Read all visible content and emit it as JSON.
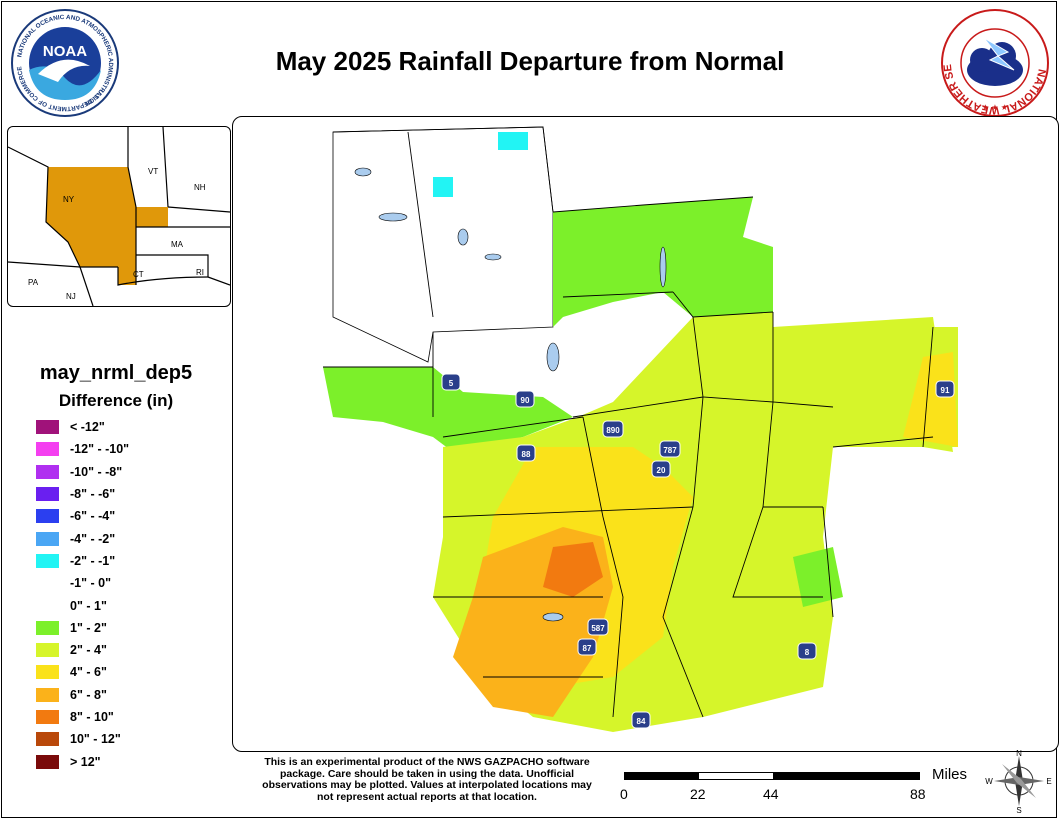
{
  "title": "May 2025 Rainfall Departure from Normal",
  "logos": {
    "noaa": {
      "text": "NOAA",
      "ring_top": "NATIONAL OCEANIC AND ATMOSPHERIC ADMINISTRATION",
      "ring_bottom": "U.S. DEPARTMENT OF COMMERCE"
    },
    "nws": {
      "ring": "NATIONAL WEATHER SERVICE"
    }
  },
  "inset_map": {
    "states": [
      "NY",
      "VT",
      "NH",
      "MA",
      "CT",
      "RI",
      "PA",
      "NJ"
    ],
    "highlight_color": "#e0980a"
  },
  "legend": {
    "title": "may_nrml_dep5",
    "subtitle": "Difference (in)",
    "items": [
      {
        "label": "< -12\"",
        "color": "#a0127a"
      },
      {
        "label": "-12\" - -10\"",
        "color": "#f43ff0"
      },
      {
        "label": "-10\" - -8\"",
        "color": "#b02ff0"
      },
      {
        "label": "-8\" - -6\"",
        "color": "#6a1ff0"
      },
      {
        "label": "-6\" - -4\"",
        "color": "#2b3ff0"
      },
      {
        "label": "-4\" - -2\"",
        "color": "#4aa6f4"
      },
      {
        "label": "-2\" - -1\"",
        "color": "#22f4f4"
      },
      {
        "label": "-1\" - 0\"",
        "color": "#ffffff"
      },
      {
        "label": "0\" - 1\"",
        "color": "#ffffff"
      },
      {
        "label": "1\" - 2\"",
        "color": "#7cf02a"
      },
      {
        "label": "2\" - 4\"",
        "color": "#d6f52a"
      },
      {
        "label": "4\" - 6\"",
        "color": "#fae21a"
      },
      {
        "label": "6\" - 8\"",
        "color": "#fbb21a"
      },
      {
        "label": "8\" - 10\"",
        "color": "#f27a10"
      },
      {
        "label": "10\" - 12\"",
        "color": "#b9480a"
      },
      {
        "label": "> 12\"",
        "color": "#7a0a0a"
      }
    ]
  },
  "highways": [
    "5",
    "90",
    "890",
    "88",
    "787",
    "20",
    "91",
    "587",
    "87",
    "84",
    "8"
  ],
  "disclaimer": "This is an experimental product of the NWS GAZPACHO software package. Care should be taken in using the data. Unofficial observations may be plotted. Values at interpolated locations may not represent actual reports at that location.",
  "scale": {
    "unit": "Miles",
    "ticks": [
      "0",
      "22",
      "44",
      "88"
    ]
  },
  "compass": {
    "n": "N",
    "e": "E",
    "s": "S",
    "w": "W"
  }
}
